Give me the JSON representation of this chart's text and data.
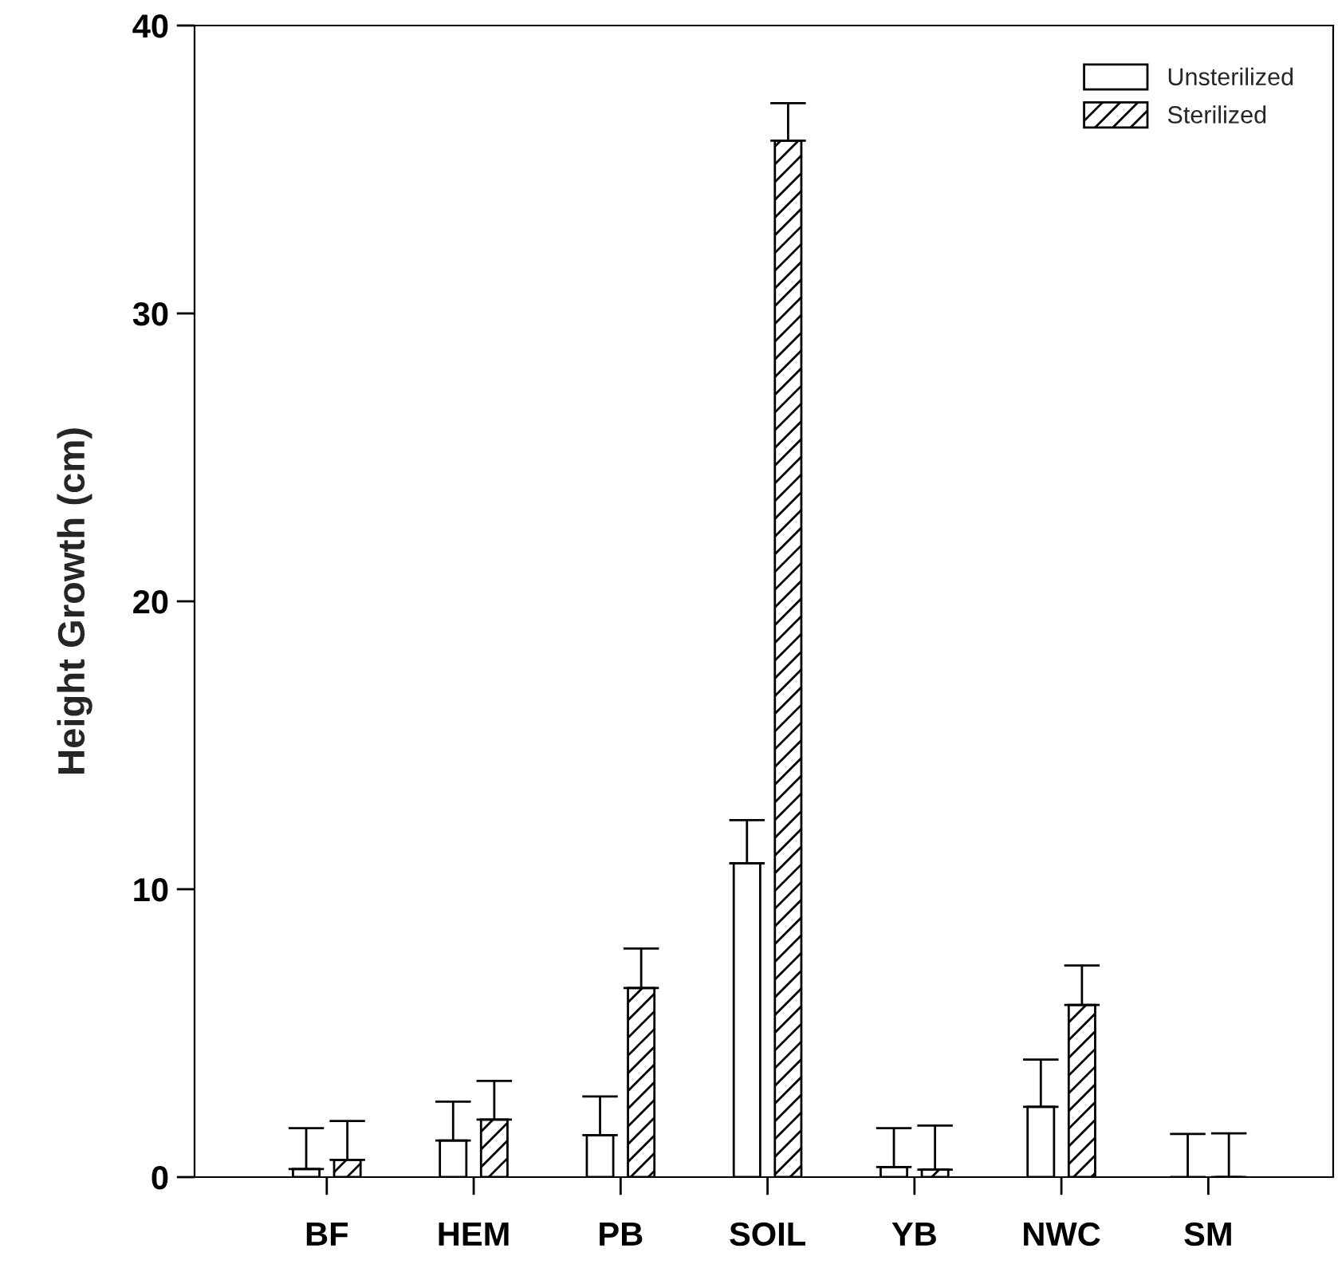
{
  "chart_data": {
    "type": "bar",
    "ylabel": "Height Growth (cm)",
    "categories": [
      "BF",
      "HEM",
      "PB",
      "SOIL",
      "YB",
      "NWC",
      "SM"
    ],
    "series": [
      {
        "name": "Unsterilized",
        "color": "#ffffff",
        "values": [
          0.28,
          1.27,
          1.46,
          10.9,
          0.35,
          2.44,
          0
        ],
        "errors": [
          [
            0.28,
            1.7
          ],
          [
            1.27,
            2.62
          ],
          [
            1.46,
            2.8
          ],
          [
            10.9,
            12.4
          ],
          [
            0.35,
            1.7
          ],
          [
            2.44,
            4.08
          ],
          [
            0,
            1.5
          ]
        ]
      },
      {
        "name": "Sterilized",
        "color": "#000000",
        "values": [
          0.6,
          2.0,
          6.57,
          36.0,
          0.26,
          5.98,
          0
        ],
        "errors": [
          [
            0.6,
            1.95
          ],
          [
            2.0,
            3.34
          ],
          [
            6.57,
            7.94
          ],
          [
            36.0,
            37.3
          ],
          [
            0.26,
            1.79
          ],
          [
            5.98,
            7.35
          ],
          [
            0,
            1.52
          ]
        ]
      }
    ],
    "ylim": [
      0,
      40
    ],
    "yticks": [
      0,
      10,
      20,
      30,
      40
    ],
    "grid": false,
    "legend": "top right"
  }
}
